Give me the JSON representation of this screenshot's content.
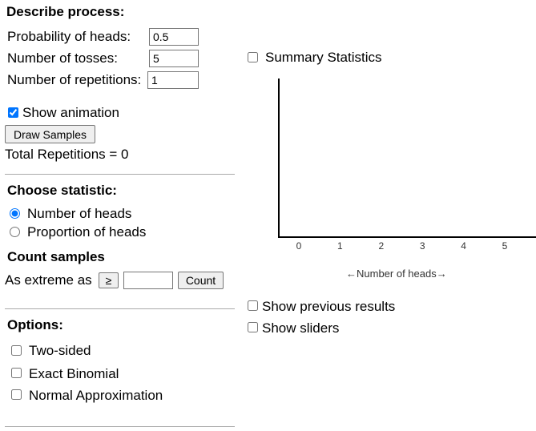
{
  "process": {
    "title": "Describe process:",
    "fields": [
      {
        "label": "Probability of heads:",
        "value": "0.5"
      },
      {
        "label": "Number of tosses:",
        "value": "5"
      },
      {
        "label": "Number of repetitions:",
        "value": "1"
      }
    ],
    "show_animation": "Show animation",
    "draw_button": "Draw Samples",
    "total": "Total Repetitions = 0"
  },
  "statistic": {
    "title": "Choose statistic:",
    "options": [
      "Number of heads",
      "Proportion of heads"
    ]
  },
  "count": {
    "title": "Count samples",
    "label": "As extreme as",
    "operator": "≥",
    "button": "Count"
  },
  "options": {
    "title": "Options:",
    "items": [
      "Two-sided",
      "Exact Binomial",
      "Normal Approximation"
    ]
  },
  "summary": "Summary Statistics",
  "plot": {
    "ticks": [
      "0",
      "1",
      "2",
      "3",
      "4",
      "5"
    ],
    "axis_label": "←Number of heads→"
  },
  "extras": [
    "Show previous results",
    "Show sliders"
  ]
}
